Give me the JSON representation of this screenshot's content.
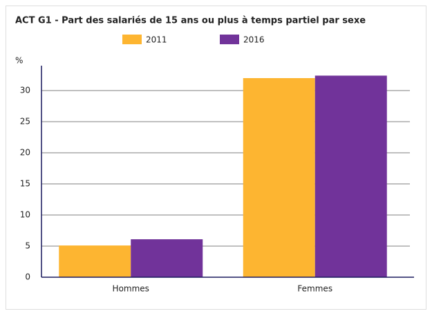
{
  "chart_data": {
    "type": "bar",
    "title": "ACT G1 - Part des salariés de 15 ans ou plus à temps partiel par sexe",
    "y_label": "%",
    "categories": [
      "Hommes",
      "Femmes"
    ],
    "series": [
      {
        "name": "2011",
        "color": "#fdb531",
        "values": [
          5.1,
          32.0
        ]
      },
      {
        "name": "2016",
        "color": "#71339a",
        "values": [
          6.1,
          32.4
        ]
      }
    ],
    "ylim": [
      0,
      34
    ],
    "yticks": [
      0,
      5,
      10,
      15,
      20,
      25,
      30
    ],
    "grid": true,
    "legend": "top"
  }
}
